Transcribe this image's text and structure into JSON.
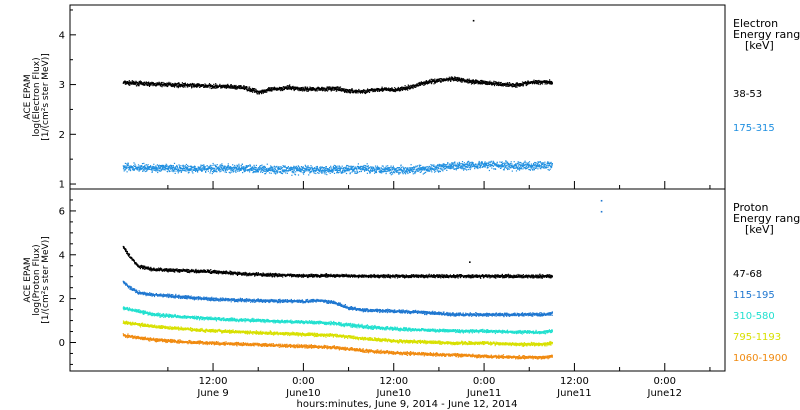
{
  "chart_data": [
    {
      "type": "scatter",
      "panel": "electron",
      "ylabel_lines": [
        "ACE EPAM",
        "log(Electron Flux)",
        "[1/(cm²s ster MeV)]"
      ],
      "ylim": [
        0.9,
        4.6
      ],
      "yticks": [
        1,
        2,
        3,
        4
      ],
      "legend_title_lines": [
        "Electron",
        "Energy ranges",
        "[keV]"
      ],
      "series": [
        {
          "name": "38-53",
          "color": "#000000",
          "values": [
            [
              0,
              3.05
            ],
            [
              4,
              3.02
            ],
            [
              8,
              3.0
            ],
            [
              12,
              2.98
            ],
            [
              16,
              2.95
            ],
            [
              18,
              2.86
            ],
            [
              20,
              2.92
            ],
            [
              22,
              2.95
            ],
            [
              24,
              2.92
            ],
            [
              28,
              2.93
            ],
            [
              30,
              2.88
            ],
            [
              32,
              2.87
            ],
            [
              34,
              2.92
            ],
            [
              36,
              2.9
            ],
            [
              38,
              2.95
            ],
            [
              40,
              3.05
            ],
            [
              42,
              3.1
            ],
            [
              44,
              3.12
            ],
            [
              46,
              3.08
            ],
            [
              48,
              3.05
            ],
            [
              50,
              3.02
            ],
            [
              52,
              3.0
            ],
            [
              54,
              3.05
            ],
            [
              56,
              3.07
            ],
            [
              57,
              3.05
            ]
          ]
        },
        {
          "name": "175-315",
          "color": "#1f8fe0",
          "values": [
            [
              0,
              1.35
            ],
            [
              4,
              1.33
            ],
            [
              8,
              1.32
            ],
            [
              12,
              1.33
            ],
            [
              16,
              1.32
            ],
            [
              20,
              1.3
            ],
            [
              24,
              1.3
            ],
            [
              28,
              1.3
            ],
            [
              32,
              1.32
            ],
            [
              36,
              1.3
            ],
            [
              40,
              1.3
            ],
            [
              44,
              1.38
            ],
            [
              48,
              1.4
            ],
            [
              52,
              1.37
            ],
            [
              56,
              1.38
            ],
            [
              57,
              1.4
            ]
          ]
        }
      ],
      "spikes": [
        {
          "x": 46.5,
          "y": 4.3
        }
      ]
    },
    {
      "type": "scatter",
      "panel": "proton",
      "ylabel_lines": [
        "ACE EPAM",
        "log(Proton Flux)",
        "[1/(cm²s ster MeV)]"
      ],
      "ylim": [
        -1.3,
        7.0
      ],
      "yticks": [
        0,
        2,
        4,
        6
      ],
      "legend_title_lines": [
        "Proton",
        "Energy ranges",
        "[keV]"
      ],
      "series": [
        {
          "name": "47-68",
          "color": "#000000",
          "values": [
            [
              0,
              4.4
            ],
            [
              1,
              3.9
            ],
            [
              2,
              3.5
            ],
            [
              4,
              3.35
            ],
            [
              8,
              3.3
            ],
            [
              12,
              3.25
            ],
            [
              16,
              3.15
            ],
            [
              20,
              3.1
            ],
            [
              24,
              3.08
            ],
            [
              28,
              3.07
            ],
            [
              32,
              3.06
            ],
            [
              36,
              3.05
            ],
            [
              40,
              3.05
            ],
            [
              44,
              3.05
            ],
            [
              48,
              3.05
            ],
            [
              52,
              3.05
            ],
            [
              56,
              3.05
            ],
            [
              57,
              3.05
            ]
          ]
        },
        {
          "name": "115-195",
          "color": "#1f77d0",
          "values": [
            [
              0,
              2.8
            ],
            [
              1,
              2.5
            ],
            [
              2,
              2.3
            ],
            [
              4,
              2.2
            ],
            [
              8,
              2.1
            ],
            [
              12,
              2.0
            ],
            [
              16,
              1.95
            ],
            [
              20,
              1.92
            ],
            [
              24,
              1.9
            ],
            [
              26,
              1.95
            ],
            [
              28,
              1.85
            ],
            [
              30,
              1.6
            ],
            [
              32,
              1.5
            ],
            [
              36,
              1.45
            ],
            [
              40,
              1.4
            ],
            [
              42,
              1.35
            ],
            [
              44,
              1.3
            ],
            [
              48,
              1.3
            ],
            [
              52,
              1.3
            ],
            [
              56,
              1.3
            ],
            [
              57,
              1.35
            ]
          ]
        },
        {
          "name": "310-580",
          "color": "#22e0cf",
          "values": [
            [
              0,
              1.6
            ],
            [
              4,
              1.3
            ],
            [
              8,
              1.2
            ],
            [
              12,
              1.1
            ],
            [
              16,
              1.05
            ],
            [
              20,
              1.0
            ],
            [
              24,
              0.95
            ],
            [
              28,
              0.9
            ],
            [
              32,
              0.75
            ],
            [
              36,
              0.65
            ],
            [
              40,
              0.6
            ],
            [
              44,
              0.55
            ],
            [
              48,
              0.55
            ],
            [
              52,
              0.5
            ],
            [
              56,
              0.5
            ],
            [
              57,
              0.55
            ]
          ]
        },
        {
          "name": "795-1193",
          "color": "#d8e000",
          "values": [
            [
              0,
              0.95
            ],
            [
              4,
              0.75
            ],
            [
              8,
              0.65
            ],
            [
              12,
              0.55
            ],
            [
              16,
              0.5
            ],
            [
              20,
              0.45
            ],
            [
              24,
              0.4
            ],
            [
              28,
              0.35
            ],
            [
              32,
              0.2
            ],
            [
              36,
              0.1
            ],
            [
              40,
              0.05
            ],
            [
              44,
              0.0
            ],
            [
              48,
              0.0
            ],
            [
              52,
              -0.05
            ],
            [
              56,
              -0.05
            ],
            [
              57,
              0.0
            ]
          ]
        },
        {
          "name": "1060-1900",
          "color": "#f08a10",
          "values": [
            [
              0,
              0.35
            ],
            [
              4,
              0.15
            ],
            [
              8,
              0.05
            ],
            [
              12,
              0.0
            ],
            [
              16,
              -0.05
            ],
            [
              20,
              -0.1
            ],
            [
              24,
              -0.15
            ],
            [
              28,
              -0.2
            ],
            [
              32,
              -0.35
            ],
            [
              36,
              -0.45
            ],
            [
              40,
              -0.5
            ],
            [
              44,
              -0.55
            ],
            [
              48,
              -0.6
            ],
            [
              52,
              -0.65
            ],
            [
              56,
              -0.65
            ],
            [
              57,
              -0.6
            ]
          ]
        }
      ],
      "spikes": [
        {
          "x": 63.5,
          "y": 6.5
        },
        {
          "x": 63.5,
          "y": 6.0
        },
        {
          "x": 46.0,
          "y": 3.7
        }
      ]
    }
  ],
  "x_axis": {
    "range_hours": [
      -7.0,
      80.0
    ],
    "ticks": [
      {
        "hour": 6,
        "label": ""
      },
      {
        "hour": 12,
        "label": "12:00",
        "sublabel": "June 9"
      },
      {
        "hour": 18,
        "label": ""
      },
      {
        "hour": 24,
        "label": "0:00",
        "sublabel": "June10"
      },
      {
        "hour": 30,
        "label": ""
      },
      {
        "hour": 36,
        "label": "12:00",
        "sublabel": "June10"
      },
      {
        "hour": 42,
        "label": ""
      },
      {
        "hour": 48,
        "label": "0:00",
        "sublabel": "June11"
      },
      {
        "hour": 54,
        "label": ""
      },
      {
        "hour": 60,
        "label": "12:00",
        "sublabel": "June11"
      },
      {
        "hour": 66,
        "label": ""
      },
      {
        "hour": 72,
        "label": "0:00",
        "sublabel": "June12"
      },
      {
        "hour": 78,
        "label": ""
      }
    ],
    "title": "hours:minutes, June  9, 2014 - June 12, 2014"
  }
}
